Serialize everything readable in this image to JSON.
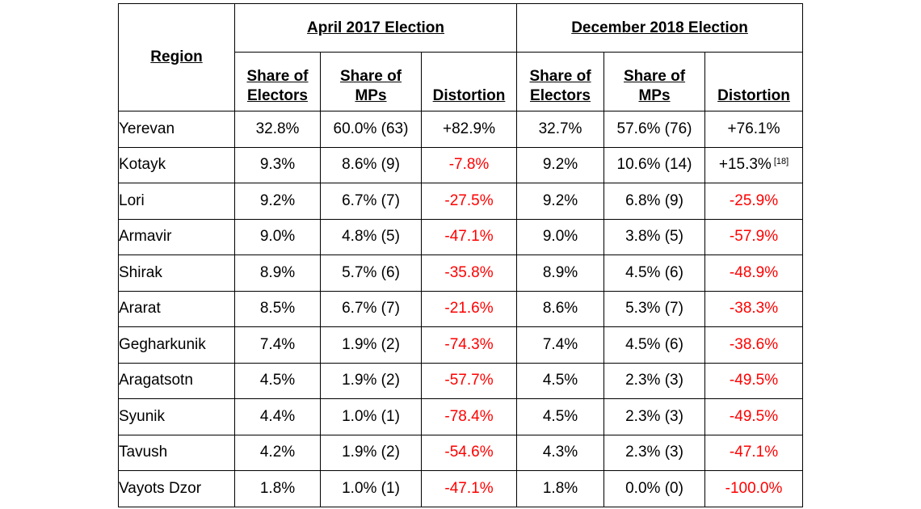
{
  "headers": {
    "region": "Region",
    "group_2017": "April 2017 Election",
    "group_2018": "December 2018 Election",
    "share_electors_line1": "Share of",
    "share_electors_line2": "Electors",
    "share_mps_line1": "Share of",
    "share_mps_line2": "MPs",
    "distortion": "Distortion"
  },
  "footnote_ref": "[18]",
  "rows": [
    {
      "region": "Yerevan",
      "e17": "32.8%",
      "m17": "60.0% (63)",
      "d17": "+82.9%",
      "e18": "32.7%",
      "m18": "57.6% (76)",
      "d18": "+76.1%"
    },
    {
      "region": "Kotayk",
      "e17": "9.3%",
      "m17": "8.6% (9)",
      "d17": "-7.8%",
      "e18": "9.2%",
      "m18": "10.6% (14)",
      "d18": "+15.3%"
    },
    {
      "region": "Lori",
      "e17": "9.2%",
      "m17": "6.7% (7)",
      "d17": "-27.5%",
      "e18": "9.2%",
      "m18": "6.8% (9)",
      "d18": "-25.9%"
    },
    {
      "region": "Armavir",
      "e17": "9.0%",
      "m17": "4.8% (5)",
      "d17": "-47.1%",
      "e18": "9.0%",
      "m18": "3.8% (5)",
      "d18": "-57.9%"
    },
    {
      "region": "Shirak",
      "e17": "8.9%",
      "m17": "5.7% (6)",
      "d17": "-35.8%",
      "e18": "8.9%",
      "m18": "4.5% (6)",
      "d18": "-48.9%"
    },
    {
      "region": "Ararat",
      "e17": "8.5%",
      "m17": "6.7% (7)",
      "d17": "-21.6%",
      "e18": "8.6%",
      "m18": "5.3% (7)",
      "d18": "-38.3%"
    },
    {
      "region": "Gegharkunik",
      "e17": "7.4%",
      "m17": "1.9% (2)",
      "d17": "-74.3%",
      "e18": "7.4%",
      "m18": "4.5% (6)",
      "d18": "-38.6%"
    },
    {
      "region": "Aragatsotn",
      "e17": "4.5%",
      "m17": "1.9% (2)",
      "d17": "-57.7%",
      "e18": "4.5%",
      "m18": "2.3% (3)",
      "d18": "-49.5%"
    },
    {
      "region": "Syunik",
      "e17": "4.4%",
      "m17": "1.0% (1)",
      "d17": "-78.4%",
      "e18": "4.5%",
      "m18": "2.3% (3)",
      "d18": "-49.5%"
    },
    {
      "region": "Tavush",
      "e17": "4.2%",
      "m17": "1.9% (2)",
      "d17": "-54.6%",
      "e18": "4.3%",
      "m18": "2.3% (3)",
      "d18": "-47.1%"
    },
    {
      "region": "Vayots Dzor",
      "e17": "1.8%",
      "m17": "1.0% (1)",
      "d17": "-47.1%",
      "e18": "1.8%",
      "m18": "0.0% (0)",
      "d18": "-100.0%"
    }
  ],
  "colors": {
    "text": "#000000",
    "negative": "#ff0000",
    "border": "#000000",
    "background": "#ffffff"
  }
}
